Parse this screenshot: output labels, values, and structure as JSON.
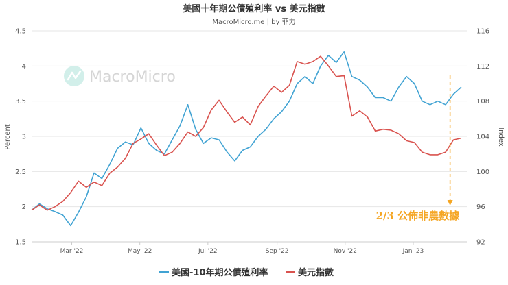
{
  "chart_data": {
    "type": "line",
    "title": "美國十年期公債殖利率 vs 美元指數",
    "subtitle": "MacroMicro.me | by 菲力",
    "watermark": "MacroMicro",
    "ylabel_left": "Percent",
    "ylabel_right": "Index",
    "ylim_left": [
      1.5,
      4.5
    ],
    "ylim_right": [
      92,
      116
    ],
    "left_ticks": [
      "1.5",
      "2",
      "2.5",
      "3",
      "3.5",
      "4",
      "4.5"
    ],
    "right_ticks": [
      "92",
      "96",
      "100",
      "104",
      "108",
      "112",
      "116"
    ],
    "x_ticks": [
      {
        "date": "2022-03-01",
        "label": "Mar '22"
      },
      {
        "date": "2022-05-01",
        "label": "May '22"
      },
      {
        "date": "2022-07-01",
        "label": "Jul '22"
      },
      {
        "date": "2022-09-01",
        "label": "Sep '22"
      },
      {
        "date": "2022-11-01",
        "label": "Nov '22"
      },
      {
        "date": "2023-01-01",
        "label": "Jan '23"
      }
    ],
    "xlim": [
      "2022-01-24",
      "2023-02-18"
    ],
    "annotation": {
      "text": "2/3 公佈非農數據",
      "date": "2023-02-03",
      "color": "#f5a623"
    },
    "legend_position": "bottom",
    "grid": true,
    "series": [
      {
        "name": "美國-10年期公債殖利率",
        "axis": "left",
        "color": "#41a3d3",
        "points": [
          [
            "2022-01-24",
            1.95
          ],
          [
            "2022-01-31",
            2.04
          ],
          [
            "2022-02-07",
            1.97
          ],
          [
            "2022-02-14",
            1.93
          ],
          [
            "2022-02-21",
            1.88
          ],
          [
            "2022-02-28",
            1.73
          ],
          [
            "2022-03-07",
            1.92
          ],
          [
            "2022-03-14",
            2.14
          ],
          [
            "2022-03-21",
            2.48
          ],
          [
            "2022-03-28",
            2.4
          ],
          [
            "2022-04-04",
            2.6
          ],
          [
            "2022-04-11",
            2.83
          ],
          [
            "2022-04-18",
            2.92
          ],
          [
            "2022-04-25",
            2.88
          ],
          [
            "2022-05-02",
            3.12
          ],
          [
            "2022-05-09",
            2.9
          ],
          [
            "2022-05-16",
            2.8
          ],
          [
            "2022-05-23",
            2.75
          ],
          [
            "2022-05-30",
            2.95
          ],
          [
            "2022-06-06",
            3.15
          ],
          [
            "2022-06-13",
            3.45
          ],
          [
            "2022-06-20",
            3.1
          ],
          [
            "2022-06-27",
            2.9
          ],
          [
            "2022-07-04",
            2.98
          ],
          [
            "2022-07-11",
            2.95
          ],
          [
            "2022-07-18",
            2.78
          ],
          [
            "2022-07-25",
            2.65
          ],
          [
            "2022-08-01",
            2.8
          ],
          [
            "2022-08-08",
            2.85
          ],
          [
            "2022-08-15",
            3.0
          ],
          [
            "2022-08-22",
            3.1
          ],
          [
            "2022-08-29",
            3.25
          ],
          [
            "2022-09-05",
            3.35
          ],
          [
            "2022-09-12",
            3.5
          ],
          [
            "2022-09-19",
            3.75
          ],
          [
            "2022-09-26",
            3.85
          ],
          [
            "2022-10-03",
            3.75
          ],
          [
            "2022-10-10",
            4.0
          ],
          [
            "2022-10-17",
            4.15
          ],
          [
            "2022-10-24",
            4.05
          ],
          [
            "2022-10-31",
            4.2
          ],
          [
            "2022-11-07",
            3.85
          ],
          [
            "2022-11-14",
            3.8
          ],
          [
            "2022-11-21",
            3.7
          ],
          [
            "2022-11-28",
            3.55
          ],
          [
            "2022-12-05",
            3.55
          ],
          [
            "2022-12-12",
            3.5
          ],
          [
            "2022-12-19",
            3.7
          ],
          [
            "2022-12-26",
            3.85
          ],
          [
            "2023-01-02",
            3.75
          ],
          [
            "2023-01-09",
            3.5
          ],
          [
            "2023-01-16",
            3.45
          ],
          [
            "2023-01-23",
            3.5
          ],
          [
            "2023-01-30",
            3.45
          ],
          [
            "2023-02-06",
            3.6
          ],
          [
            "2023-02-13",
            3.7
          ]
        ]
      },
      {
        "name": "美元指數",
        "axis": "right",
        "color": "#d9534f",
        "points": [
          [
            "2022-01-24",
            95.6
          ],
          [
            "2022-01-31",
            96.2
          ],
          [
            "2022-02-07",
            95.6
          ],
          [
            "2022-02-14",
            96.0
          ],
          [
            "2022-02-21",
            96.6
          ],
          [
            "2022-02-28",
            97.6
          ],
          [
            "2022-03-07",
            98.9
          ],
          [
            "2022-03-14",
            98.2
          ],
          [
            "2022-03-21",
            98.8
          ],
          [
            "2022-03-28",
            98.4
          ],
          [
            "2022-04-04",
            99.8
          ],
          [
            "2022-04-11",
            100.5
          ],
          [
            "2022-04-18",
            101.5
          ],
          [
            "2022-04-25",
            103.2
          ],
          [
            "2022-05-02",
            103.7
          ],
          [
            "2022-05-09",
            104.3
          ],
          [
            "2022-05-16",
            103.0
          ],
          [
            "2022-05-23",
            101.8
          ],
          [
            "2022-05-30",
            102.2
          ],
          [
            "2022-06-06",
            103.2
          ],
          [
            "2022-06-13",
            104.5
          ],
          [
            "2022-06-20",
            104.0
          ],
          [
            "2022-06-27",
            105.0
          ],
          [
            "2022-07-04",
            107.0
          ],
          [
            "2022-07-11",
            108.1
          ],
          [
            "2022-07-18",
            106.8
          ],
          [
            "2022-07-25",
            105.6
          ],
          [
            "2022-08-01",
            106.2
          ],
          [
            "2022-08-08",
            105.3
          ],
          [
            "2022-08-15",
            107.4
          ],
          [
            "2022-08-22",
            108.6
          ],
          [
            "2022-08-29",
            109.7
          ],
          [
            "2022-09-05",
            109.0
          ],
          [
            "2022-09-12",
            109.8
          ],
          [
            "2022-09-19",
            112.5
          ],
          [
            "2022-09-26",
            112.2
          ],
          [
            "2022-10-03",
            112.5
          ],
          [
            "2022-10-10",
            113.1
          ],
          [
            "2022-10-17",
            112.0
          ],
          [
            "2022-10-24",
            110.8
          ],
          [
            "2022-10-31",
            110.9
          ],
          [
            "2022-11-07",
            106.3
          ],
          [
            "2022-11-14",
            106.9
          ],
          [
            "2022-11-21",
            106.2
          ],
          [
            "2022-11-28",
            104.6
          ],
          [
            "2022-12-05",
            104.8
          ],
          [
            "2022-12-12",
            104.7
          ],
          [
            "2022-12-19",
            104.3
          ],
          [
            "2022-12-26",
            103.5
          ],
          [
            "2023-01-02",
            103.3
          ],
          [
            "2023-01-09",
            102.2
          ],
          [
            "2023-01-16",
            101.9
          ],
          [
            "2023-01-23",
            101.9
          ],
          [
            "2023-01-30",
            102.2
          ],
          [
            "2023-02-06",
            103.6
          ],
          [
            "2023-02-13",
            103.8
          ]
        ]
      }
    ]
  }
}
